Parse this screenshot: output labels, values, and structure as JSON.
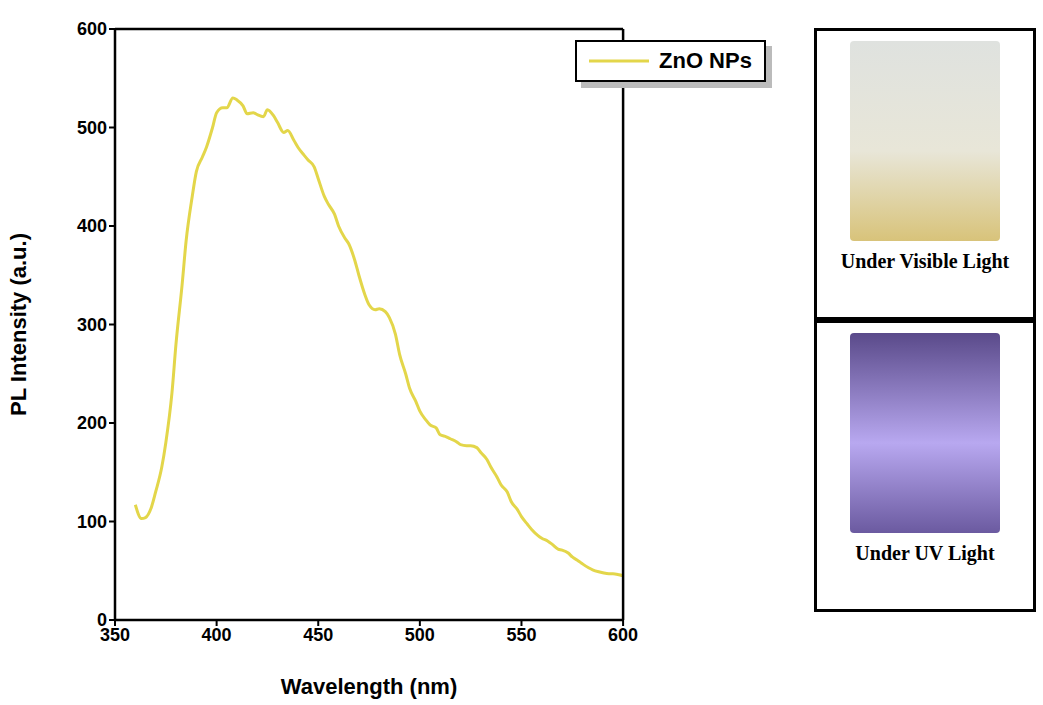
{
  "chart_data": {
    "type": "line",
    "x_label": "Wavelength (nm)",
    "y_label": "PL Intensity (a.u.)",
    "xlim": [
      350,
      600
    ],
    "xticks": [
      350,
      400,
      450,
      500,
      550,
      600
    ],
    "ylim": [
      0,
      600
    ],
    "yticks": [
      0,
      100,
      200,
      300,
      400,
      500,
      600
    ],
    "legend": "upper right",
    "series": [
      {
        "name": "ZnO NPs",
        "color": "#e3d64a",
        "x": [
          360,
          363,
          365,
          368,
          370,
          373,
          375,
          378,
          380,
          383,
          385,
          388,
          390,
          393,
          395,
          398,
          400,
          403,
          405,
          408,
          410,
          413,
          415,
          418,
          420,
          423,
          425,
          428,
          430,
          433,
          435,
          438,
          440,
          443,
          445,
          448,
          450,
          453,
          455,
          458,
          460,
          463,
          465,
          468,
          470,
          473,
          475,
          478,
          480,
          483,
          485,
          488,
          490,
          493,
          495,
          498,
          500,
          503,
          505,
          508,
          510,
          513,
          515,
          518,
          520,
          523,
          525,
          528,
          530,
          533,
          535,
          538,
          540,
          543,
          545,
          548,
          550,
          553,
          555,
          558,
          560,
          563,
          565,
          568,
          570,
          573,
          575,
          578,
          580,
          583,
          585,
          588,
          590,
          593,
          595,
          598,
          600
        ],
        "values": [
          117,
          103,
          104,
          115,
          130,
          155,
          180,
          230,
          280,
          340,
          385,
          430,
          455,
          470,
          480,
          500,
          515,
          520,
          520,
          530,
          528,
          522,
          514,
          515,
          513,
          511,
          518,
          512,
          505,
          495,
          497,
          487,
          480,
          472,
          467,
          460,
          448,
          430,
          422,
          412,
          400,
          388,
          382,
          365,
          350,
          330,
          320,
          315,
          316,
          313,
          307,
          290,
          270,
          250,
          235,
          222,
          212,
          203,
          198,
          195,
          188,
          186,
          184,
          181,
          178,
          177,
          177,
          175,
          170,
          163,
          155,
          145,
          137,
          130,
          120,
          112,
          105,
          97,
          92,
          86,
          83,
          80,
          77,
          72,
          71,
          68,
          64,
          60,
          57,
          53,
          51,
          49,
          48,
          47,
          47,
          46,
          45
        ]
      }
    ],
    "annotations": [
      "Under Visible Light",
      "Under UV Light"
    ]
  }
}
